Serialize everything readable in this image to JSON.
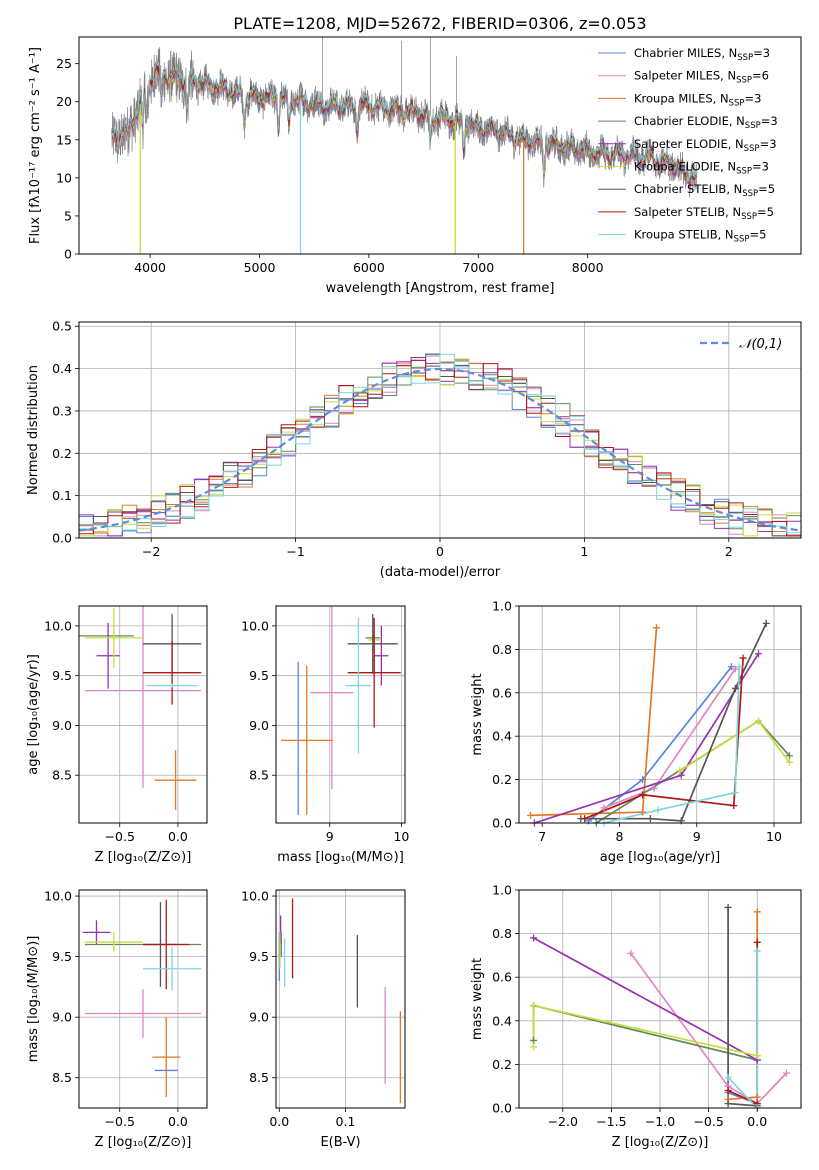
{
  "colors": {
    "Chabrier MILES": "#5b84e0",
    "Salpeter MILES": "#e086c1",
    "Kroupa MILES": "#e07a26",
    "Chabrier ELODIE": "#5f8a60",
    "Salpeter ELODIE": "#9b2fb8",
    "Kroupa ELODIE": "#c8dc3c",
    "Chabrier STELIB": "#555555",
    "Salpeter STELIB": "#b01818",
    "Kroupa STELIB": "#7fd6de"
  },
  "chart_data": [
    {
      "type": "line",
      "title": "PLATE=1208, MJD=52672, FIBERID=0306, z=0.053",
      "xlabel": "wavelength [Angstrom, rest frame]",
      "ylabel": "Flux [fλ10⁻¹⁷ erg cm⁻² s⁻¹ A⁻¹]",
      "xlim": [
        3350,
        9950
      ],
      "ylim": [
        0,
        28.5
      ],
      "xticks": [
        "4000",
        "5000",
        "6000",
        "7000",
        "8000"
      ],
      "yticks": [
        "0",
        "5",
        "10",
        "15",
        "20",
        "25"
      ],
      "legend_position": "upper-right",
      "legend": [
        {
          "series": "Chabrier MILES",
          "label": "Chabrier MILES, N",
          "sub": "SSP",
          "eq": "=3"
        },
        {
          "series": "Salpeter MILES",
          "label": "Salpeter MILES, N",
          "sub": "SSP",
          "eq": "=6"
        },
        {
          "series": "Kroupa MILES",
          "label": "Kroupa MILES, N",
          "sub": "SSP",
          "eq": "=3"
        },
        {
          "series": "Chabrier ELODIE",
          "label": "Chabrier ELODIE, N",
          "sub": "SSP",
          "eq": "=3"
        },
        {
          "series": "Salpeter ELODIE",
          "label": "Salpeter ELODIE, N",
          "sub": "SSP",
          "eq": "=3"
        },
        {
          "series": "Kroupa ELODIE",
          "label": "Kroupa ELODIE, N",
          "sub": "SSP",
          "eq": "=3"
        },
        {
          "series": "Chabrier STELIB",
          "label": "Chabrier STELIB, N",
          "sub": "SSP",
          "eq": "=5"
        },
        {
          "series": "Salpeter STELIB",
          "label": "Salpeter STELIB, N",
          "sub": "SSP",
          "eq": "=5"
        },
        {
          "series": "Kroupa STELIB",
          "label": "Kroupa STELIB, N",
          "sub": "SSP",
          "eq": "=5"
        }
      ],
      "spectrum_envelope": {
        "x": [
          3650,
          3800,
          3950,
          4050,
          4200,
          4400,
          4600,
          4800,
          5000,
          5200,
          5400,
          5600,
          5800,
          6000,
          6200,
          6400,
          6600,
          6800,
          7000,
          7200,
          7400,
          7600,
          7800,
          8000,
          8200,
          8400,
          8600,
          8800,
          9000
        ],
        "y": [
          15,
          16,
          21,
          24,
          23,
          22.5,
          22,
          21,
          20.5,
          20.5,
          20,
          19.5,
          19.5,
          19.5,
          19,
          18.5,
          18,
          17.5,
          16.5,
          16,
          15,
          14.5,
          14,
          13.5,
          13,
          13,
          12.5,
          11.5,
          9.5
        ]
      }
    },
    {
      "type": "step",
      "xlabel": "(data-model)/error",
      "ylabel": "Normed distribution",
      "xlim": [
        -2.5,
        2.5
      ],
      "ylim": [
        0,
        0.51
      ],
      "xticks": [
        "−2",
        "−1",
        "0",
        "1",
        "2"
      ],
      "yticks": [
        "0.0",
        "0.1",
        "0.2",
        "0.3",
        "0.4",
        "0.5"
      ],
      "legend_position": "upper-right",
      "reference_curve": {
        "label": "𝒩(0,1)",
        "mean": 0,
        "sigma": 1
      },
      "bin_width": 0.1
    },
    {
      "type": "errorbar",
      "xlabel": "Z [log₁₀(Z/Z⊙)]",
      "ylabel": "age  [log₁₀(age/yr)]",
      "xlim": [
        -0.85,
        0.25
      ],
      "ylim": [
        8.02,
        10.2
      ],
      "xticks": [
        "−0.5",
        "0.0"
      ],
      "yticks": [
        "8.5",
        "9.0",
        "9.5",
        "10.0"
      ],
      "points": [
        {
          "series": "Chabrier MILES",
          "x": 0.0,
          "xerr": 0.0,
          "y": 9.4,
          "yerr": 0.0
        },
        {
          "series": "Salpeter MILES",
          "x": -0.3,
          "xerr": 0.5,
          "y": 9.35,
          "yerr": 0.98
        },
        {
          "series": "Kroupa MILES",
          "x": -0.02,
          "xerr": 0.18,
          "y": 8.45,
          "yerr": 0.3
        },
        {
          "series": "Chabrier ELODIE",
          "x": -0.68,
          "xerr": 0.3,
          "y": 9.9,
          "yerr": 0.0
        },
        {
          "series": "Salpeter ELODIE",
          "x": -0.6,
          "xerr": 0.1,
          "y": 9.7,
          "yerr": 0.33
        },
        {
          "series": "Kroupa ELODIE",
          "x": -0.55,
          "xerr": 0.25,
          "y": 9.88,
          "yerr": 0.3
        },
        {
          "series": "Chabrier STELIB",
          "x": -0.05,
          "xerr": 0.25,
          "y": 9.82,
          "yerr": 0.3
        },
        {
          "series": "Salpeter STELIB",
          "x": -0.05,
          "xerr": 0.25,
          "y": 9.53,
          "yerr": 0.32
        },
        {
          "series": "Kroupa STELIB",
          "x": -0.05,
          "xerr": 0.22,
          "y": 9.4,
          "yerr": 0.02
        }
      ]
    },
    {
      "type": "errorbar",
      "xlabel": "mass [log₁₀(M/M⊙)]",
      "ylabel": "",
      "xlim": [
        8.25,
        10.05
      ],
      "ylim": [
        8.02,
        10.2
      ],
      "xticks": [
        "9",
        "10"
      ],
      "yticks": [
        "8.5",
        "9.0",
        "9.5",
        "10.0"
      ],
      "points": [
        {
          "series": "Chabrier MILES",
          "x": 8.56,
          "xerr": 0.0,
          "y": 8.87,
          "yerr": 0.77
        },
        {
          "series": "Salpeter MILES",
          "x": 9.03,
          "xerr": 0.3,
          "y": 9.33,
          "yerr": 0.97
        },
        {
          "series": "Kroupa MILES",
          "x": 8.68,
          "xerr": 0.36,
          "y": 8.85,
          "yerr": 0.75
        },
        {
          "series": "Chabrier ELODIE",
          "x": 9.6,
          "xerr": 0.1,
          "y": 9.88,
          "yerr": 0.03
        },
        {
          "series": "Salpeter ELODIE",
          "x": 9.72,
          "xerr": 0.1,
          "y": 9.7,
          "yerr": 0.3
        },
        {
          "series": "Kroupa ELODIE",
          "x": 9.62,
          "xerr": 0.08,
          "y": 9.86,
          "yerr": 0.03
        },
        {
          "series": "Chabrier STELIB",
          "x": 9.6,
          "xerr": 0.35,
          "y": 9.82,
          "yerr": 0.3
        },
        {
          "series": "Salpeter STELIB",
          "x": 9.62,
          "xerr": 0.37,
          "y": 9.53,
          "yerr": 0.55
        },
        {
          "series": "Kroupa STELIB",
          "x": 9.4,
          "xerr": 0.18,
          "y": 9.4,
          "yerr": 0.68
        }
      ]
    },
    {
      "type": "line",
      "xlabel": "age  [log₁₀(age/yr)]",
      "ylabel": "mass weight",
      "xlim": [
        6.7,
        10.35
      ],
      "ylim": [
        0,
        1.0
      ],
      "xticks": [
        "7",
        "8",
        "9",
        "10"
      ],
      "yticks": [
        "0.0",
        "0.2",
        "0.4",
        "0.6",
        "0.8",
        "1.0"
      ],
      "series": [
        {
          "name": "Chabrier MILES",
          "x": [
            7.6,
            8.3,
            9.45
          ],
          "y": [
            0.01,
            0.2,
            0.72
          ]
        },
        {
          "name": "Salpeter MILES",
          "x": [
            7.8,
            8.45,
            9.5
          ],
          "y": [
            0.07,
            0.16,
            0.71
          ]
        },
        {
          "name": "Kroupa MILES",
          "x": [
            6.85,
            8.3,
            8.48
          ],
          "y": [
            0.035,
            0.05,
            0.9
          ]
        },
        {
          "name": "Chabrier ELODIE",
          "x": [
            7.7,
            9.8,
            10.2
          ],
          "y": [
            0.0,
            0.47,
            0.31
          ]
        },
        {
          "name": "Salpeter ELODIE",
          "x": [
            6.9,
            8.8,
            9.8
          ],
          "y": [
            0.0,
            0.22,
            0.78
          ]
        },
        {
          "name": "Kroupa ELODIE",
          "x": [
            8.78,
            9.8,
            10.2
          ],
          "y": [
            0.24,
            0.47,
            0.28
          ]
        },
        {
          "name": "Chabrier STELIB",
          "x": [
            7.5,
            8.4,
            8.8,
            9.5,
            9.9
          ],
          "y": [
            0.02,
            0.02,
            0.01,
            0.62,
            0.92
          ]
        },
        {
          "name": "Salpeter STELIB",
          "x": [
            7.55,
            8.3,
            9.48,
            9.6
          ],
          "y": [
            0.02,
            0.13,
            0.08,
            0.76
          ]
        },
        {
          "name": "Kroupa STELIB",
          "x": [
            7.8,
            8.5,
            9.5,
            9.55
          ],
          "y": [
            0.0,
            0.06,
            0.14,
            0.72
          ]
        }
      ]
    },
    {
      "type": "errorbar",
      "xlabel": "Z [log₁₀(Z/Z⊙)]",
      "ylabel": "mass [log₁₀(M/M⊙)]",
      "xlim": [
        -0.85,
        0.25
      ],
      "ylim": [
        8.25,
        10.05
      ],
      "xticks": [
        "−0.5",
        "0.0"
      ],
      "yticks": [
        "8.5",
        "9.0",
        "9.5",
        "10.0"
      ],
      "points": [
        {
          "series": "Chabrier MILES",
          "x": -0.1,
          "xerr": 0.1,
          "y": 8.56,
          "yerr": 0.0
        },
        {
          "series": "Salpeter MILES",
          "x": -0.3,
          "xerr": 0.5,
          "y": 9.03,
          "yerr": 0.2
        },
        {
          "series": "Kroupa MILES",
          "x": -0.1,
          "xerr": 0.12,
          "y": 8.67,
          "yerr": 0.33
        },
        {
          "series": "Chabrier ELODIE",
          "x": -0.3,
          "xerr": 0.5,
          "y": 9.6,
          "yerr": 0.0
        },
        {
          "series": "Salpeter ELODIE",
          "x": -0.7,
          "xerr": 0.12,
          "y": 9.7,
          "yerr": 0.1
        },
        {
          "series": "Kroupa ELODIE",
          "x": -0.55,
          "xerr": 0.25,
          "y": 9.62,
          "yerr": 0.08
        },
        {
          "series": "Chabrier STELIB",
          "x": -0.15,
          "xerr": 0.15,
          "y": 9.6,
          "yerr": 0.35
        },
        {
          "series": "Salpeter STELIB",
          "x": -0.1,
          "xerr": 0.2,
          "y": 9.6,
          "yerr": 0.37
        },
        {
          "series": "Kroupa STELIB",
          "x": -0.05,
          "xerr": 0.25,
          "y": 9.4,
          "yerr": 0.18
        }
      ]
    },
    {
      "type": "errorbar",
      "xlabel": "E(B-V)",
      "ylabel": "",
      "xlim": [
        -0.005,
        0.19
      ],
      "ylim": [
        8.25,
        10.05
      ],
      "xticks": [
        "0.0",
        "0.1"
      ],
      "yticks": [
        "8.5",
        "9.0",
        "9.5",
        "10.0"
      ],
      "points": [
        {
          "series": "Chabrier MILES",
          "x": 0.0,
          "xerr": 0.0,
          "y": 9.5,
          "yerr": 0.2
        },
        {
          "series": "Salpeter MILES",
          "x": 0.16,
          "xerr": 0.0,
          "y": 8.85,
          "yerr": 0.4
        },
        {
          "series": "Kroupa MILES",
          "x": 0.183,
          "xerr": 0.0,
          "y": 8.67,
          "yerr": 0.38
        },
        {
          "series": "Chabrier ELODIE",
          "x": 0.003,
          "xerr": 0.0,
          "y": 9.6,
          "yerr": 0.1
        },
        {
          "series": "Salpeter ELODIE",
          "x": 0.002,
          "xerr": 0.0,
          "y": 9.72,
          "yerr": 0.12
        },
        {
          "series": "Kroupa ELODIE",
          "x": 0.001,
          "xerr": 0.0,
          "y": 9.55,
          "yerr": 0.15
        },
        {
          "series": "Chabrier STELIB",
          "x": 0.118,
          "xerr": 0.0,
          "y": 9.38,
          "yerr": 0.3
        },
        {
          "series": "Salpeter STELIB",
          "x": 0.02,
          "xerr": 0.0,
          "y": 9.65,
          "yerr": 0.33
        },
        {
          "series": "Kroupa STELIB",
          "x": 0.008,
          "xerr": 0.0,
          "y": 9.45,
          "yerr": 0.2
        }
      ]
    },
    {
      "type": "line",
      "xlabel": "Z [log₁₀(Z/Z⊙)]",
      "ylabel": "mass weight",
      "xlim": [
        -2.45,
        0.45
      ],
      "ylim": [
        0,
        1.0
      ],
      "xticks": [
        "−2.0",
        "−1.5",
        "−1.0",
        "−0.5",
        "0.0"
      ],
      "yticks": [
        "0.0",
        "0.2",
        "0.4",
        "0.6",
        "0.8",
        "1.0"
      ],
      "series": [
        {
          "name": "Chabrier MILES",
          "x": [
            -0.3,
            0.0
          ],
          "y": [
            0.07,
            0.02
          ]
        },
        {
          "name": "Salpeter MILES",
          "x": [
            -1.3,
            -0.3,
            0.0,
            0.3
          ],
          "y": [
            0.71,
            0.1,
            0.02,
            0.16
          ]
        },
        {
          "name": "Kroupa MILES",
          "x": [
            -0.3,
            0.0,
            0.0
          ],
          "y": [
            0.04,
            0.05,
            0.9
          ]
        },
        {
          "name": "Chabrier ELODIE",
          "x": [
            -2.3,
            -2.3,
            0.0
          ],
          "y": [
            0.31,
            0.47,
            0.22
          ]
        },
        {
          "name": "Salpeter ELODIE",
          "x": [
            -2.3,
            0.0
          ],
          "y": [
            0.78,
            0.22
          ]
        },
        {
          "name": "Kroupa ELODIE",
          "x": [
            -2.3,
            -2.3,
            0.0
          ],
          "y": [
            0.28,
            0.47,
            0.24
          ]
        },
        {
          "name": "Chabrier STELIB",
          "x": [
            -0.3,
            -0.3,
            0.0
          ],
          "y": [
            0.92,
            0.02,
            0.01
          ]
        },
        {
          "name": "Salpeter STELIB",
          "x": [
            -0.3,
            0.0,
            0.0
          ],
          "y": [
            0.08,
            0.02,
            0.76
          ]
        },
        {
          "name": "Kroupa STELIB",
          "x": [
            -0.3,
            0.0,
            0.0
          ],
          "y": [
            0.14,
            0.0,
            0.72
          ]
        }
      ]
    }
  ]
}
